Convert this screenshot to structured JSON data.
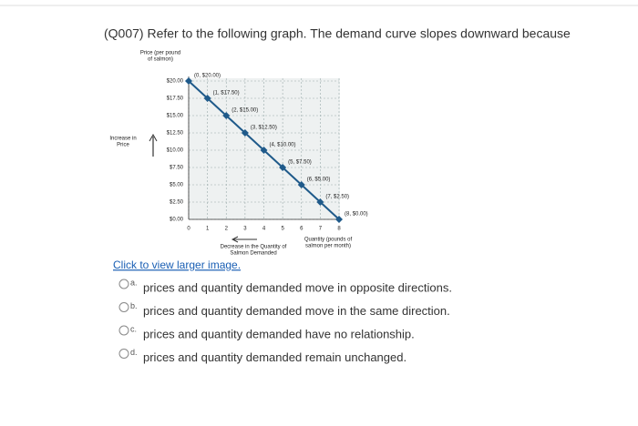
{
  "question": "(Q007) Refer to the following graph. The demand curve slopes downward because",
  "link": "Click to view larger image.",
  "options": [
    {
      "letter": "a.",
      "text": "prices and quantity demanded move in opposite directions."
    },
    {
      "letter": "b.",
      "text": "prices and quantity demanded move in the same direction."
    },
    {
      "letter": "c.",
      "text": "prices and quantity demanded have no relationship."
    },
    {
      "letter": "d.",
      "text": "prices and quantity demanded remain unchanged."
    }
  ],
  "chart_data": {
    "type": "line",
    "ylabel": [
      "Price (per pound",
      "of salmon)"
    ],
    "xlabel": [
      "Quantity (pounds of",
      "salmon per month)"
    ],
    "annotations": [
      [
        "Increase in",
        "Price"
      ],
      [
        "Decrease in the Quantity of",
        "Salmon Demanded"
      ]
    ],
    "x": [
      0,
      1,
      2,
      3,
      4,
      5,
      6,
      7,
      8
    ],
    "series": [
      {
        "color": "#1f5a8a",
        "values": [
          20,
          17.5,
          15,
          12.5,
          10,
          7.5,
          5,
          2.5,
          0
        ],
        "value_labels": [
          "(0, $20.00)",
          "(1, $17.50)",
          "(2, $15.00)",
          "(3, $12.50)",
          "(4, $10.00)",
          "(5, $7.50)",
          "(6, $5.00)",
          "(7, $2.50)",
          "(8, $0.00)"
        ]
      }
    ],
    "xlim": [
      0,
      8
    ],
    "xticks": [
      0,
      1,
      2,
      3,
      4,
      5,
      6,
      7,
      8
    ],
    "ylim": [
      0,
      20
    ],
    "yticks": [
      {
        "value": 0,
        "label": "$0.00"
      },
      {
        "value": 2.5,
        "label": "$2.50"
      },
      {
        "value": 5,
        "label": "$5.00"
      },
      {
        "value": 7.5,
        "label": "$7.50"
      },
      {
        "value": 10,
        "label": "$10.00"
      },
      {
        "value": 12.5,
        "label": "$12.50"
      },
      {
        "value": 15,
        "label": "$15.00"
      },
      {
        "value": 17.5,
        "label": "$17.50"
      },
      {
        "value": 20,
        "label": "$20.00"
      }
    ],
    "grid": true
  }
}
